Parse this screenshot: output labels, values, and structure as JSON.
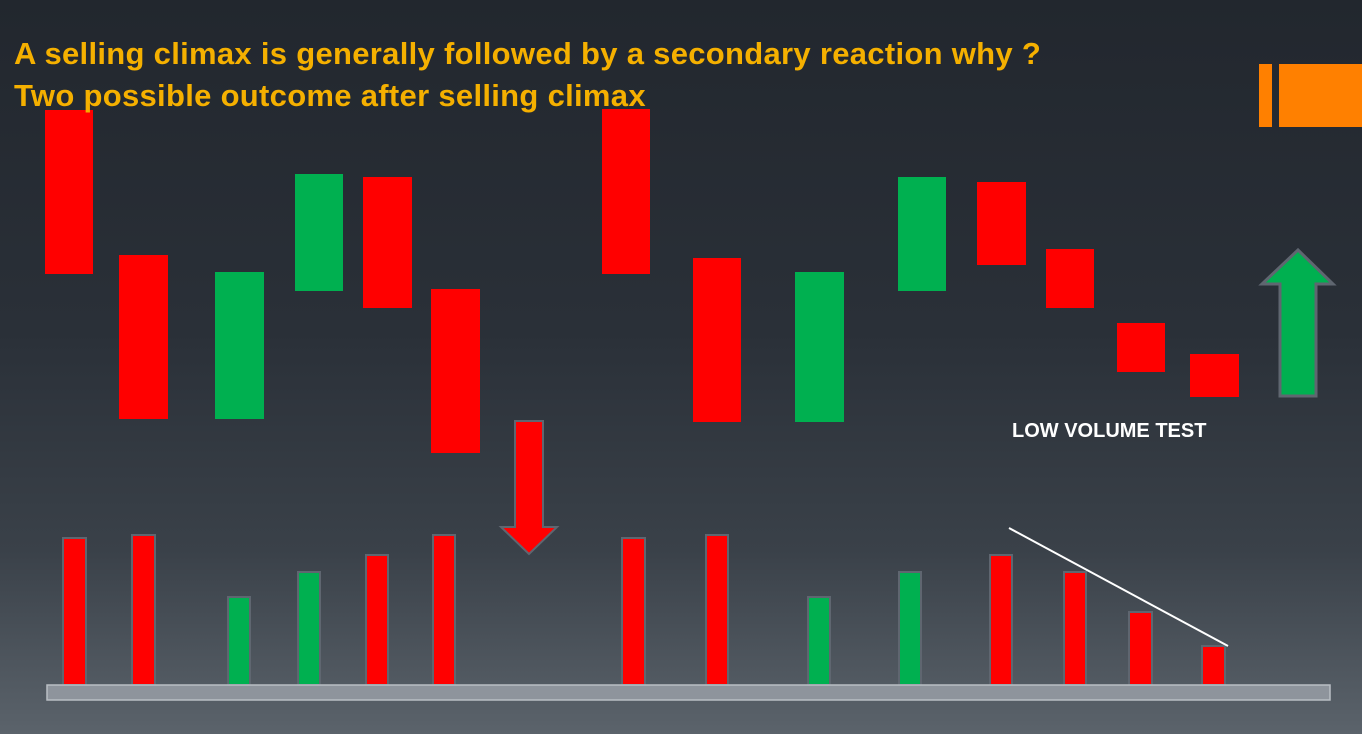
{
  "title_lines": [
    "A selling climax is generally followed by a secondary reaction why ?",
    "Two possible outcome after selling climax"
  ],
  "annotation": "LOW VOLUME TEST",
  "colors": {
    "title": "#f5b000",
    "accent": "#ff8000",
    "bearish": "#ff0000",
    "bullish": "#00b050",
    "volume_border": "#5f6670",
    "base_bar": "#8e949c",
    "trend_line": "#ffffff",
    "caption": "#ffffff"
  },
  "arrows": [
    {
      "name": "down-arrow-icon",
      "direction": "down",
      "color": "#ff0000"
    },
    {
      "name": "up-arrow-icon",
      "direction": "up",
      "color": "#00b050"
    }
  ],
  "scenarios": [
    {
      "name": "failed-reaction",
      "candles": [
        "bearish",
        "bearish",
        "bullish",
        "bullish",
        "bearish",
        "bearish"
      ],
      "volume": [
        "bearish",
        "bearish",
        "bullish",
        "bullish",
        "bearish",
        "bearish"
      ]
    },
    {
      "name": "low-volume-test",
      "candles": [
        "bearish",
        "bearish",
        "bullish",
        "bullish",
        "bearish",
        "bearish",
        "bearish",
        "bearish"
      ],
      "volume": [
        "bearish",
        "bearish",
        "bullish",
        "bullish",
        "bearish",
        "bearish",
        "bearish",
        "bearish"
      ]
    }
  ]
}
